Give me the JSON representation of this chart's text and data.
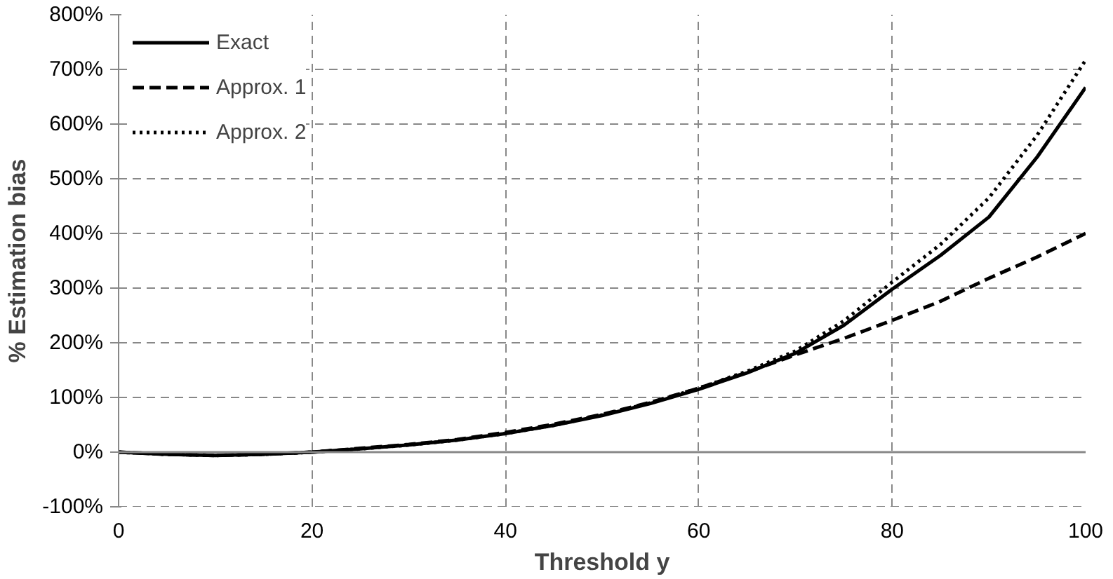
{
  "chart_data": {
    "type": "line",
    "xlabel": "Threshold y",
    "ylabel": "% Estimation bias",
    "x": [
      0,
      5,
      10,
      15,
      20,
      25,
      30,
      35,
      40,
      45,
      50,
      55,
      60,
      65,
      70,
      75,
      80,
      85,
      90,
      95,
      100
    ],
    "series": [
      {
        "name": "Exact",
        "color": "#000000",
        "line_style": "solid",
        "values": [
          0,
          -4,
          -6,
          -4,
          0,
          6,
          13,
          22,
          34,
          49,
          67,
          89,
          115,
          145,
          181,
          232,
          298,
          360,
          430,
          540,
          667
        ]
      },
      {
        "name": "Approx. 1",
        "color": "#000000",
        "line_style": "dashed",
        "values": [
          0,
          -4,
          -6,
          -4,
          0,
          7,
          14,
          23,
          36,
          51,
          69,
          91,
          117,
          146,
          178,
          208,
          241,
          276,
          318,
          357,
          400
        ]
      },
      {
        "name": "Approx. 2",
        "color": "#000000",
        "line_style": "dotted",
        "values": [
          0,
          -4,
          -6,
          -4,
          0,
          6,
          13,
          22,
          34,
          49,
          68,
          90,
          117,
          148,
          185,
          240,
          311,
          380,
          465,
          580,
          717
        ]
      }
    ],
    "xlim": [
      0,
      100
    ],
    "xticks": [
      0,
      20,
      40,
      60,
      80,
      100
    ],
    "ylim": [
      -100,
      800
    ],
    "yticks": [
      {
        "value": -100,
        "label": "-100%"
      },
      {
        "value": 0,
        "label": "0%"
      },
      {
        "value": 100,
        "label": "100%"
      },
      {
        "value": 200,
        "label": "200%"
      },
      {
        "value": 300,
        "label": "300%"
      },
      {
        "value": 400,
        "label": "400%"
      },
      {
        "value": 500,
        "label": "500%"
      },
      {
        "value": 600,
        "label": "600%"
      },
      {
        "value": 700,
        "label": "700%"
      },
      {
        "value": 800,
        "label": "800%"
      }
    ],
    "grid": true,
    "legend": "top left",
    "marker": "none"
  }
}
